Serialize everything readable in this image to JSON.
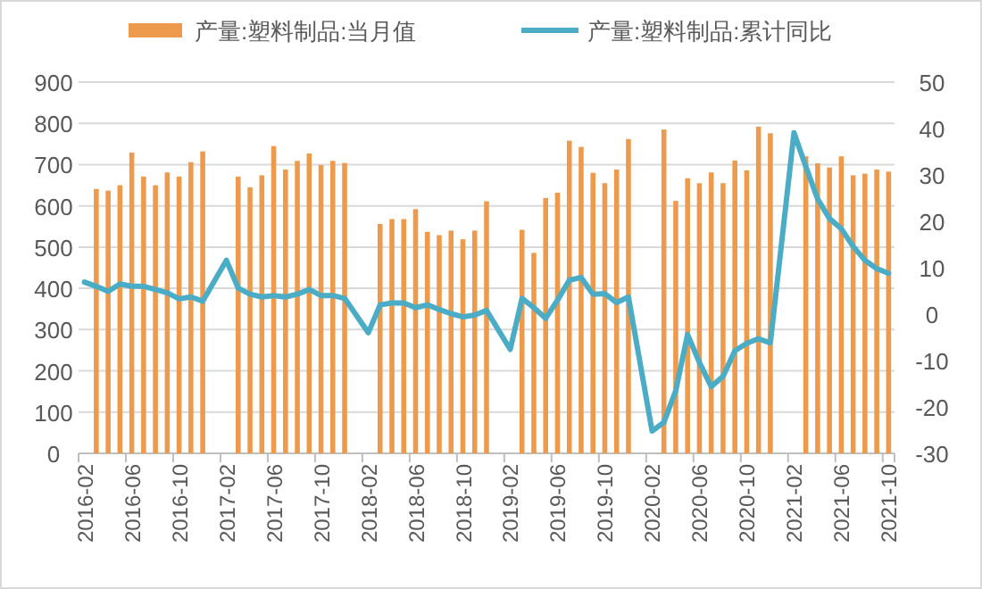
{
  "chart_data": {
    "type": "bar",
    "categories": [
      "2016-02",
      null,
      null,
      null,
      "2016-06",
      null,
      null,
      null,
      "2016-10",
      null,
      null,
      null,
      "2017-02",
      null,
      null,
      null,
      "2017-06",
      null,
      null,
      null,
      "2017-10",
      null,
      null,
      null,
      "2018-02",
      null,
      null,
      null,
      "2018-06",
      null,
      null,
      null,
      "2018-10",
      null,
      null,
      null,
      "2019-02",
      null,
      null,
      null,
      "2019-06",
      null,
      null,
      null,
      "2019-10",
      null,
      null,
      null,
      "2020-02",
      null,
      null,
      null,
      "2020-06",
      null,
      null,
      null,
      "2020-10",
      null,
      null,
      null,
      "2021-02",
      null,
      null,
      null,
      "2021-06",
      null,
      null,
      null,
      "2021-10"
    ],
    "series": [
      {
        "name": "产量:塑料制品:当月值",
        "color": "#ed9a4c",
        "values": [
          null,
          641,
          637,
          650,
          729,
          671,
          650,
          681,
          671,
          706,
          732,
          null,
          null,
          671,
          645,
          674,
          745,
          688,
          709,
          727,
          699,
          709,
          704,
          null,
          null,
          556,
          568,
          568,
          592,
          537,
          529,
          540,
          519,
          540,
          611,
          null,
          null,
          542,
          486,
          619,
          632,
          758,
          743,
          680,
          655,
          688,
          762,
          null,
          null,
          785,
          612,
          667,
          655,
          681,
          655,
          710,
          686,
          792,
          776,
          null,
          null,
          720,
          703,
          693,
          720,
          674,
          678,
          688,
          683
        ]
      },
      {
        "name": "产量:塑料制品:累计同比",
        "type": "line",
        "axis": "y2",
        "color": "#4bacc6",
        "line_style": "solid",
        "marker": "none",
        "values": [
          6.9,
          6.0,
          4.9,
          6.5,
          6.0,
          6.0,
          5.3,
          4.6,
          3.3,
          3.7,
          2.8,
          null,
          11.6,
          5.6,
          4.3,
          3.7,
          4.0,
          3.7,
          4.3,
          5.3,
          4.0,
          4.0,
          3.4,
          null,
          -4.0,
          2.0,
          2.4,
          2.4,
          1.4,
          2.0,
          1.0,
          0.1,
          -0.6,
          -0.2,
          0.8,
          null,
          -7.6,
          3.4,
          1.4,
          -0.9,
          3.0,
          7.3,
          7.9,
          4.3,
          4.4,
          2.5,
          3.7,
          null,
          -25.2,
          -23.3,
          -16.5,
          -4.4,
          -10.4,
          -15.6,
          -13.4,
          -7.9,
          -6.3,
          -5.3,
          -6.2,
          null,
          39.1,
          31.8,
          24.8,
          20.6,
          18.4,
          14.6,
          11.6,
          9.8,
          8.8
        ]
      }
    ],
    "ylim": [
      0,
      900
    ],
    "yticks": [
      0,
      100,
      200,
      300,
      400,
      500,
      600,
      700,
      800,
      900
    ],
    "y2lim": [
      -30,
      50
    ],
    "y2ticks": [
      -30,
      -20,
      -10,
      0,
      10,
      20,
      30,
      40,
      50
    ],
    "grid": "y",
    "legend": "top"
  }
}
